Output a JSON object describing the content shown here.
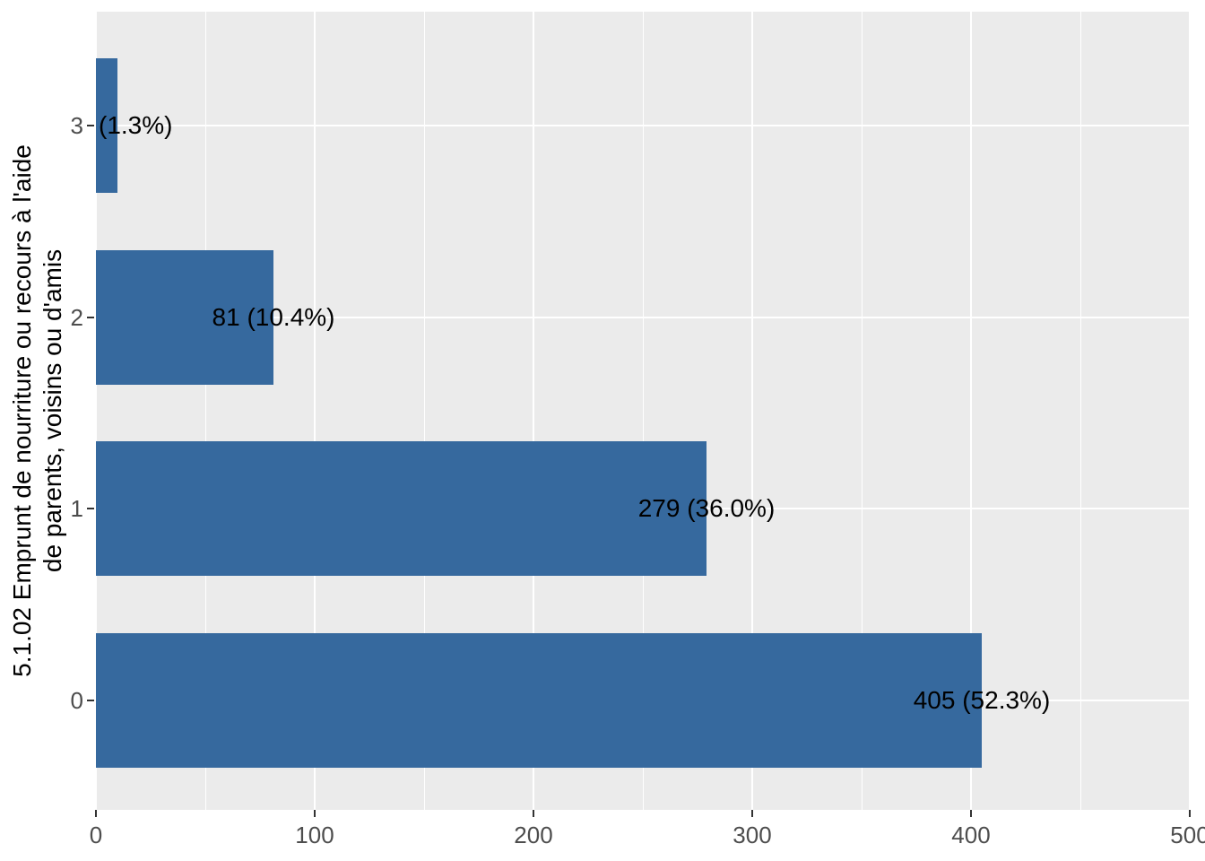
{
  "chart_data": {
    "type": "bar",
    "orientation": "horizontal",
    "title": "",
    "axis_title_lines": [
      "5.1.02 Emprunt de nourriture ou recours à l'aide",
      "de parents, voisins ou d'amis"
    ],
    "categories": [
      "3",
      "2",
      "1",
      "0"
    ],
    "values": [
      10,
      81,
      279,
      405
    ],
    "bar_labels": [
      "(1.3%)",
      "81 (10.4%)",
      "279 (36.0%)",
      "405 (52.3%)"
    ],
    "bar_label_align": [
      "left",
      "center",
      "center",
      "center"
    ],
    "xlim": [
      0,
      500
    ],
    "x_ticks": [
      0,
      100,
      200,
      300,
      400,
      500
    ],
    "x_minor_ticks": [
      50,
      150,
      250,
      350,
      450
    ],
    "grid": "on",
    "legend": "none",
    "colors": {
      "bar_fill": "#36699E",
      "panel_background": "#EBEBEB",
      "gridline": "#FFFFFF",
      "axis_tick_text": "#4D4D4D",
      "axis_tick_mark": "#333333",
      "bar_label_text": "#000000",
      "axis_title_text": "#000000"
    }
  }
}
